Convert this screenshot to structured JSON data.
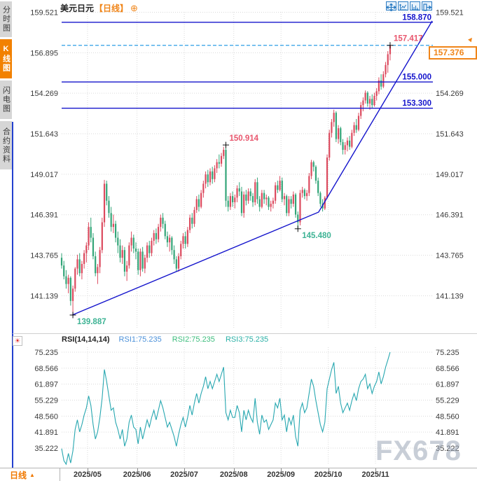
{
  "header": {
    "title": "美元日元",
    "period_tag": "【日线】",
    "settings_icon": "⊕"
  },
  "toolbar": {
    "icons": [
      "pan-crosshair",
      "compress-x-axis",
      "compress-y-axis",
      "exit-chart"
    ]
  },
  "sidebar": {
    "items": [
      {
        "label": "分时图",
        "active": false
      },
      {
        "label": "K线图",
        "active": true
      },
      {
        "label": "闪电图",
        "active": false
      },
      {
        "label": "合约资料",
        "active": false
      }
    ]
  },
  "price_panel": {
    "y_axis_labels": [
      "159.521",
      "156.895",
      "154.269",
      "151.643",
      "149.017",
      "146.391",
      "143.765",
      "141.139"
    ],
    "levels": [
      {
        "price": 158.87,
        "label": "158.870"
      },
      {
        "price": 155.0,
        "label": "155.000"
      },
      {
        "price": 153.3,
        "label": "153.300"
      }
    ],
    "current_price": {
      "value": "157.376",
      "price": 157.376,
      "direction": "up"
    },
    "annotations": [
      {
        "text": "157.417",
        "i": 146,
        "p": 157.376,
        "anchor": "above",
        "tone": "high"
      },
      {
        "text": "150.914",
        "i": 73,
        "p": 150.914,
        "anchor": "above",
        "tone": "high"
      },
      {
        "text": "145.480",
        "i": 105,
        "p": 145.48,
        "anchor": "below",
        "tone": "low"
      },
      {
        "text": "139.887",
        "i": 5,
        "p": 139.887,
        "anchor": "below",
        "tone": "low"
      }
    ]
  },
  "rsi_panel": {
    "icon": "☀",
    "header": {
      "name": "RSI(14,14,14)",
      "rsi1": "RSI1:75.235",
      "rsi2": "RSI2:75.235",
      "rsi3": "RSI3:75.235"
    },
    "y_axis_labels": [
      "75.235",
      "68.566",
      "61.897",
      "55.229",
      "48.560",
      "41.891",
      "35.222"
    ]
  },
  "bottom_bar": {
    "period_label": "日线",
    "arrow": "▲"
  },
  "watermark": "FX678",
  "chart_data": {
    "type": "candlestick+line",
    "symbol": "USD/JPY",
    "period": "daily",
    "price_axis": {
      "top": 159.521,
      "step": 2.626,
      "bottom": 141.139
    },
    "rsi_axis": {
      "top": 75.235,
      "step": 6.669,
      "bottom": 35.222
    },
    "months": [
      {
        "label": "2025/05",
        "i": 12
      },
      {
        "label": "2025/06",
        "i": 34
      },
      {
        "label": "2025/07",
        "i": 55
      },
      {
        "label": "2025/08",
        "i": 77
      },
      {
        "label": "2025/09",
        "i": 98
      },
      {
        "label": "2025/10",
        "i": 119
      },
      {
        "label": "2025/11",
        "i": 140
      }
    ],
    "trendline": [
      {
        "i": 4.7,
        "p": 139.887
      },
      {
        "i": 114.2,
        "p": 146.56
      },
      {
        "i": 164.7,
        "p": 158.96
      }
    ],
    "candles": [
      [
        143.6,
        143.9,
        142.9,
        143.1
      ],
      [
        143.1,
        143.4,
        142.2,
        142.4
      ],
      [
        142.4,
        142.8,
        141.6,
        141.9
      ],
      [
        141.9,
        142.5,
        141.3,
        142.3
      ],
      [
        142.3,
        142.4,
        140.5,
        140.8
      ],
      [
        140.8,
        141.8,
        139.887,
        141.6
      ],
      [
        141.6,
        143.0,
        141.4,
        142.9
      ],
      [
        142.9,
        143.8,
        142.5,
        143.5
      ],
      [
        143.5,
        143.9,
        142.4,
        142.6
      ],
      [
        142.6,
        143.4,
        142.2,
        143.2
      ],
      [
        143.2,
        144.1,
        142.9,
        143.9
      ],
      [
        143.9,
        144.6,
        143.3,
        144.4
      ],
      [
        144.4,
        145.9,
        144.1,
        145.6
      ],
      [
        145.6,
        146.2,
        144.6,
        144.9
      ],
      [
        144.9,
        145.2,
        143.5,
        143.7
      ],
      [
        143.7,
        144.0,
        142.4,
        142.6
      ],
      [
        142.6,
        143.2,
        141.9,
        143.0
      ],
      [
        143.0,
        144.3,
        142.6,
        144.1
      ],
      [
        144.1,
        146.2,
        143.9,
        145.9
      ],
      [
        145.9,
        148.65,
        145.6,
        148.4
      ],
      [
        148.4,
        148.6,
        147.0,
        147.3
      ],
      [
        147.3,
        147.6,
        146.2,
        146.5
      ],
      [
        146.5,
        146.9,
        145.3,
        145.6
      ],
      [
        145.6,
        146.4,
        145.2,
        145.8
      ],
      [
        145.8,
        146.0,
        144.6,
        144.9
      ],
      [
        144.9,
        145.3,
        143.9,
        144.4
      ],
      [
        144.4,
        144.8,
        143.3,
        143.6
      ],
      [
        143.6,
        144.4,
        143.2,
        144.1
      ],
      [
        144.1,
        144.3,
        142.4,
        142.7
      ],
      [
        142.7,
        143.4,
        142.1,
        143.1
      ],
      [
        143.1,
        144.6,
        142.9,
        144.4
      ],
      [
        144.4,
        145.3,
        144.0,
        144.9
      ],
      [
        144.9,
        145.1,
        143.9,
        144.2
      ],
      [
        144.2,
        144.6,
        143.5,
        144.0
      ],
      [
        144.0,
        144.2,
        142.5,
        142.8
      ],
      [
        142.8,
        144.2,
        142.4,
        144.0
      ],
      [
        144.0,
        144.3,
        142.7,
        142.9
      ],
      [
        142.9,
        143.8,
        142.6,
        143.6
      ],
      [
        143.6,
        144.6,
        143.3,
        144.4
      ],
      [
        144.4,
        144.7,
        143.6,
        143.9
      ],
      [
        143.9,
        144.9,
        143.7,
        144.7
      ],
      [
        144.7,
        145.4,
        144.4,
        145.2
      ],
      [
        145.2,
        145.5,
        144.5,
        144.8
      ],
      [
        144.8,
        145.8,
        144.6,
        145.6
      ],
      [
        145.6,
        146.4,
        145.3,
        146.2
      ],
      [
        146.2,
        146.5,
        145.5,
        145.8
      ],
      [
        145.8,
        146.0,
        144.8,
        145.0
      ],
      [
        145.0,
        145.3,
        144.3,
        144.6
      ],
      [
        144.6,
        145.1,
        144.0,
        144.9
      ],
      [
        144.9,
        145.0,
        143.8,
        144.1
      ],
      [
        144.1,
        144.4,
        143.2,
        143.5
      ],
      [
        143.5,
        143.7,
        142.7,
        142.9
      ],
      [
        142.9,
        143.9,
        142.7,
        143.7
      ],
      [
        143.7,
        144.7,
        143.5,
        144.5
      ],
      [
        144.5,
        145.2,
        144.2,
        145.0
      ],
      [
        145.0,
        145.3,
        144.2,
        144.5
      ],
      [
        144.5,
        145.6,
        144.3,
        145.4
      ],
      [
        145.4,
        146.4,
        145.2,
        146.2
      ],
      [
        146.2,
        146.5,
        145.5,
        145.8
      ],
      [
        145.8,
        146.9,
        145.6,
        146.7
      ],
      [
        146.7,
        147.6,
        146.5,
        147.4
      ],
      [
        147.4,
        147.7,
        146.6,
        146.9
      ],
      [
        146.9,
        148.0,
        146.8,
        147.8
      ],
      [
        147.8,
        148.6,
        147.5,
        148.4
      ],
      [
        148.4,
        149.2,
        148.1,
        149.0
      ],
      [
        149.0,
        149.3,
        148.2,
        148.5
      ],
      [
        148.5,
        149.4,
        148.3,
        149.2
      ],
      [
        149.2,
        149.5,
        148.4,
        148.7
      ],
      [
        148.7,
        149.6,
        148.5,
        149.4
      ],
      [
        149.4,
        150.0,
        149.1,
        149.8
      ],
      [
        149.8,
        150.3,
        149.4,
        149.7
      ],
      [
        149.7,
        150.4,
        149.5,
        150.2
      ],
      [
        150.2,
        150.8,
        150.0,
        150.6
      ],
      [
        150.6,
        150.914,
        146.9,
        147.3
      ],
      [
        147.3,
        147.6,
        146.6,
        146.9
      ],
      [
        146.9,
        147.8,
        146.7,
        147.6
      ],
      [
        147.6,
        147.9,
        146.9,
        147.2
      ],
      [
        147.2,
        147.7,
        146.8,
        147.5
      ],
      [
        147.5,
        148.3,
        147.2,
        148.1
      ],
      [
        148.1,
        148.5,
        147.6,
        147.9
      ],
      [
        147.9,
        148.2,
        146.3,
        146.5
      ],
      [
        146.5,
        147.9,
        146.2,
        147.7
      ],
      [
        147.7,
        148.0,
        147.0,
        147.3
      ],
      [
        147.3,
        148.1,
        147.1,
        147.9
      ],
      [
        147.9,
        148.1,
        147.3,
        147.6
      ],
      [
        147.6,
        147.8,
        146.9,
        147.2
      ],
      [
        147.2,
        148.7,
        147.0,
        148.5
      ],
      [
        148.5,
        148.8,
        147.1,
        147.4
      ],
      [
        147.4,
        147.6,
        146.6,
        146.9
      ],
      [
        146.9,
        148.0,
        146.8,
        147.8
      ],
      [
        147.8,
        148.0,
        147.1,
        147.4
      ],
      [
        147.4,
        147.7,
        147.0,
        147.5
      ],
      [
        147.5,
        147.6,
        146.7,
        146.9
      ],
      [
        146.9,
        147.3,
        146.6,
        147.1
      ],
      [
        147.1,
        147.5,
        146.8,
        147.3
      ],
      [
        147.3,
        148.5,
        147.1,
        148.3
      ],
      [
        148.3,
        148.6,
        147.8,
        148.0
      ],
      [
        148.0,
        148.9,
        147.9,
        148.6
      ],
      [
        148.6,
        148.8,
        147.2,
        147.4
      ],
      [
        147.4,
        147.8,
        147.0,
        147.6
      ],
      [
        147.6,
        147.7,
        146.3,
        146.5
      ],
      [
        146.5,
        147.6,
        146.3,
        147.4
      ],
      [
        147.4,
        147.6,
        146.8,
        147.1
      ],
      [
        147.1,
        147.9,
        146.9,
        147.7
      ],
      [
        147.7,
        147.8,
        146.2,
        146.4
      ],
      [
        146.4,
        146.6,
        145.48,
        145.9
      ],
      [
        145.9,
        148.0,
        145.7,
        147.8
      ],
      [
        147.8,
        148.2,
        147.5,
        148.0
      ],
      [
        148.0,
        148.1,
        147.4,
        147.6
      ],
      [
        147.6,
        148.0,
        147.3,
        147.8
      ],
      [
        147.8,
        149.1,
        147.6,
        148.9
      ],
      [
        148.9,
        149.95,
        148.7,
        149.8
      ],
      [
        149.8,
        149.9,
        149.2,
        149.5
      ],
      [
        149.5,
        149.6,
        148.4,
        148.6
      ],
      [
        148.6,
        148.8,
        147.6,
        147.8
      ],
      [
        147.8,
        147.9,
        146.9,
        147.1
      ],
      [
        147.1,
        147.4,
        146.6,
        146.8
      ],
      [
        146.8,
        147.6,
        146.7,
        147.5
      ],
      [
        147.5,
        150.3,
        147.4,
        150.1
      ],
      [
        150.1,
        151.9,
        149.9,
        151.7
      ],
      [
        151.7,
        152.6,
        151.4,
        152.4
      ],
      [
        152.4,
        153.2,
        152.1,
        153.0
      ],
      [
        153.0,
        153.1,
        151.1,
        151.3
      ],
      [
        151.3,
        152.2,
        151.0,
        152.0
      ],
      [
        152.0,
        152.1,
        150.9,
        151.1
      ],
      [
        151.1,
        151.3,
        150.3,
        150.6
      ],
      [
        150.6,
        151.1,
        150.3,
        150.9
      ],
      [
        150.9,
        151.4,
        150.5,
        151.2
      ],
      [
        151.2,
        151.5,
        150.6,
        150.8
      ],
      [
        150.8,
        151.9,
        150.7,
        151.7
      ],
      [
        151.7,
        152.4,
        151.5,
        152.2
      ],
      [
        152.2,
        152.6,
        151.7,
        151.9
      ],
      [
        151.9,
        153.0,
        151.8,
        152.8
      ],
      [
        152.8,
        153.7,
        152.6,
        153.5
      ],
      [
        153.5,
        154.0,
        153.1,
        153.8
      ],
      [
        153.8,
        154.45,
        153.6,
        154.3
      ],
      [
        154.3,
        154.4,
        153.4,
        153.6
      ],
      [
        153.6,
        154.1,
        153.2,
        153.9
      ],
      [
        153.9,
        154.2,
        153.3,
        153.5
      ],
      [
        153.5,
        154.3,
        153.4,
        154.1
      ],
      [
        154.1,
        154.6,
        153.8,
        154.4
      ],
      [
        154.4,
        155.3,
        154.2,
        155.1
      ],
      [
        155.1,
        155.5,
        154.5,
        154.7
      ],
      [
        154.7,
        155.7,
        154.6,
        155.5
      ],
      [
        155.5,
        156.3,
        155.3,
        156.1
      ],
      [
        156.1,
        157.0,
        155.6,
        156.8
      ],
      [
        156.8,
        157.417,
        156.4,
        157.376
      ]
    ],
    "rsi": [
      35,
      30,
      28.5,
      33,
      29,
      34,
      43,
      47,
      42,
      45,
      49,
      52,
      57,
      53,
      45,
      39,
      42,
      48,
      56,
      68,
      63,
      57,
      51,
      52,
      46,
      43,
      39,
      43,
      36,
      39,
      46,
      49,
      44,
      43,
      37,
      44,
      39,
      43,
      47,
      44,
      48,
      51,
      47,
      51,
      55,
      52,
      48,
      44,
      46,
      43,
      40,
      36,
      41,
      45,
      48,
      44,
      48,
      53,
      49,
      54,
      58,
      54,
      58,
      61,
      65,
      60,
      63,
      60,
      63,
      66,
      63,
      66,
      69,
      50,
      47,
      51,
      48,
      48,
      53,
      50,
      42,
      51,
      47,
      51,
      48,
      46,
      56,
      46,
      41,
      49,
      46,
      47,
      43,
      45,
      47,
      54,
      52,
      56,
      47,
      49,
      42,
      48,
      45,
      49,
      40,
      36,
      51,
      54,
      50,
      52,
      58,
      64,
      61,
      55,
      50,
      45,
      42,
      46,
      60,
      64,
      68,
      71,
      58,
      61,
      54,
      50,
      52,
      54,
      51,
      55,
      58,
      55,
      60,
      63,
      64,
      66,
      60,
      62,
      58,
      61,
      63,
      67,
      62,
      65,
      69,
      72,
      75.235
    ]
  },
  "colors": {
    "up": "#dc4a5e",
    "down": "#33a578",
    "level_line": "#1414cc",
    "trend_line": "#1414cc",
    "dashed_price": "#2f9fe6",
    "current_price": "#f08519",
    "annotation_high": "#e8566d",
    "annotation_low": "#3db394",
    "rsi_line": "#27a7b0",
    "rsi1_label": "#4a90d9",
    "rsi2_label": "#3dbd7d",
    "rsi3_label": "#2ab0a6",
    "grid": "#dadada",
    "axis_text": "#3b3b3b",
    "sidebar_active_bg": "#f28100",
    "watermark": "#9ba5b6"
  }
}
